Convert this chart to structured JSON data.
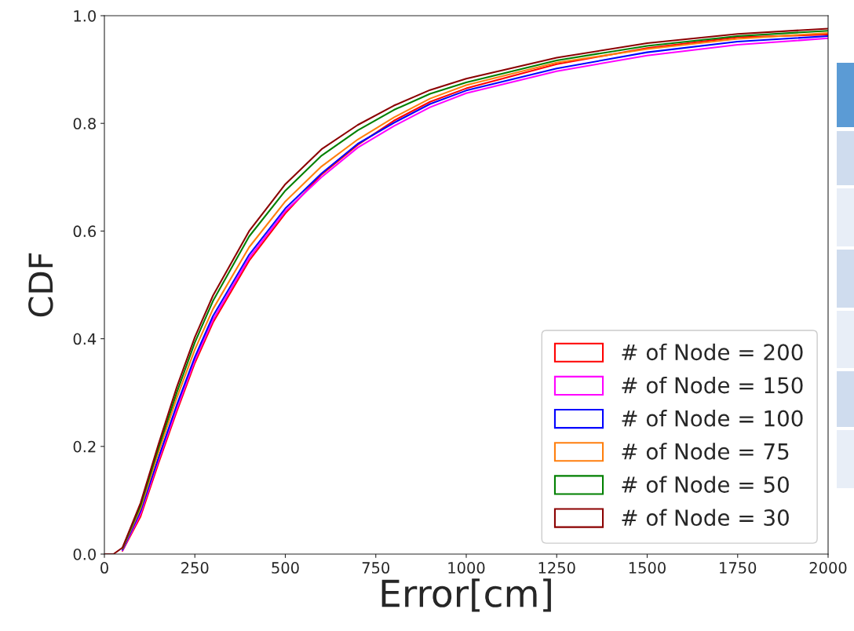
{
  "chart_data": {
    "type": "line",
    "xlabel": "Error[cm]",
    "ylabel": "CDF",
    "x": [
      50,
      100,
      150,
      200,
      250,
      300,
      400,
      500,
      600,
      700,
      800,
      900,
      1000,
      1250,
      1500,
      1750,
      2000
    ],
    "series": [
      {
        "name": "# of Node = 200",
        "color": "#ff0000",
        "values": [
          0.006,
          0.07,
          0.17,
          0.265,
          0.355,
          0.43,
          0.545,
          0.633,
          0.705,
          0.76,
          0.805,
          0.84,
          0.865,
          0.91,
          0.94,
          0.96,
          0.965
        ]
      },
      {
        "name": "# of Node = 150",
        "color": "#ff00ff",
        "values": [
          0.007,
          0.075,
          0.175,
          0.27,
          0.36,
          0.435,
          0.55,
          0.637,
          0.7,
          0.755,
          0.795,
          0.83,
          0.856,
          0.897,
          0.926,
          0.946,
          0.958
        ]
      },
      {
        "name": "# of Node = 100",
        "color": "#0000ff",
        "values": [
          0.008,
          0.08,
          0.18,
          0.277,
          0.366,
          0.442,
          0.556,
          0.642,
          0.707,
          0.762,
          0.801,
          0.836,
          0.861,
          0.902,
          0.932,
          0.952,
          0.962
        ]
      },
      {
        "name": "# of Node = 75",
        "color": "#ff7f0e",
        "values": [
          0.01,
          0.085,
          0.19,
          0.29,
          0.38,
          0.455,
          0.57,
          0.655,
          0.72,
          0.77,
          0.811,
          0.846,
          0.871,
          0.913,
          0.938,
          0.957,
          0.968
        ]
      },
      {
        "name": "# of Node = 50",
        "color": "#008000",
        "values": [
          0.011,
          0.09,
          0.198,
          0.3,
          0.393,
          0.47,
          0.59,
          0.675,
          0.74,
          0.787,
          0.825,
          0.855,
          0.876,
          0.917,
          0.944,
          0.962,
          0.972
        ]
      },
      {
        "x": [
          0,
          25,
          50,
          100,
          150,
          200,
          250,
          300,
          400,
          500,
          600,
          700,
          800,
          900,
          1000,
          1250,
          1500,
          1750,
          2000
        ],
        "name": "# of Node = 30",
        "color": "#8b0000",
        "values": [
          0,
          0,
          0.012,
          0.095,
          0.205,
          0.31,
          0.403,
          0.48,
          0.6,
          0.687,
          0.752,
          0.797,
          0.833,
          0.862,
          0.883,
          0.922,
          0.949,
          0.966,
          0.976
        ]
      }
    ],
    "xlim": [
      0,
      2000
    ],
    "xticks": [
      0,
      250,
      500,
      750,
      1000,
      1250,
      1500,
      1750,
      2000
    ],
    "ylim": [
      0,
      1.0
    ],
    "yticks": [
      {
        "value": 0,
        "label": "0.0"
      },
      {
        "value": 0.2,
        "label": "0.2"
      },
      {
        "value": 0.4,
        "label": "0.4"
      },
      {
        "value": 0.6,
        "label": "0.6"
      },
      {
        "value": 0.8,
        "label": "0.8"
      },
      {
        "value": 1.0,
        "label": "1.0"
      }
    ],
    "grid": false,
    "legend": "bottom right"
  }
}
